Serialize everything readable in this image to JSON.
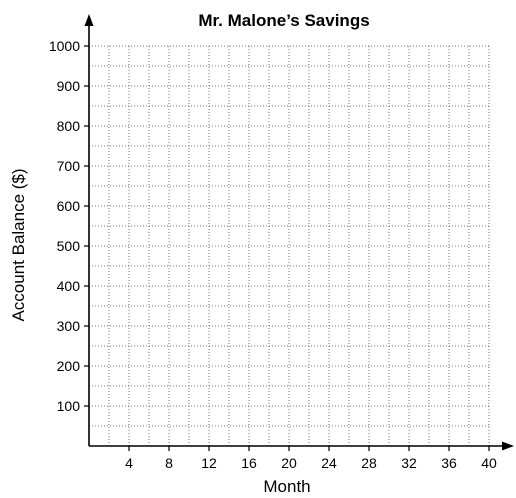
{
  "chart_data": {
    "type": "line",
    "title": "Mr. Malone’s Savings",
    "xlabel": "Month",
    "ylabel": "Account Balance ($)",
    "xlim": [
      0,
      40
    ],
    "ylim": [
      0,
      1000
    ],
    "x_ticks": [
      "4",
      "8",
      "12",
      "16",
      "20",
      "24",
      "28",
      "32",
      "36",
      "40"
    ],
    "y_ticks": [
      "100",
      "200",
      "300",
      "400",
      "500",
      "600",
      "700",
      "800",
      "900",
      "1000"
    ],
    "x_minor_step": 2,
    "y_minor_step": 50,
    "grid": true,
    "grid_style": "dotted",
    "series": []
  }
}
